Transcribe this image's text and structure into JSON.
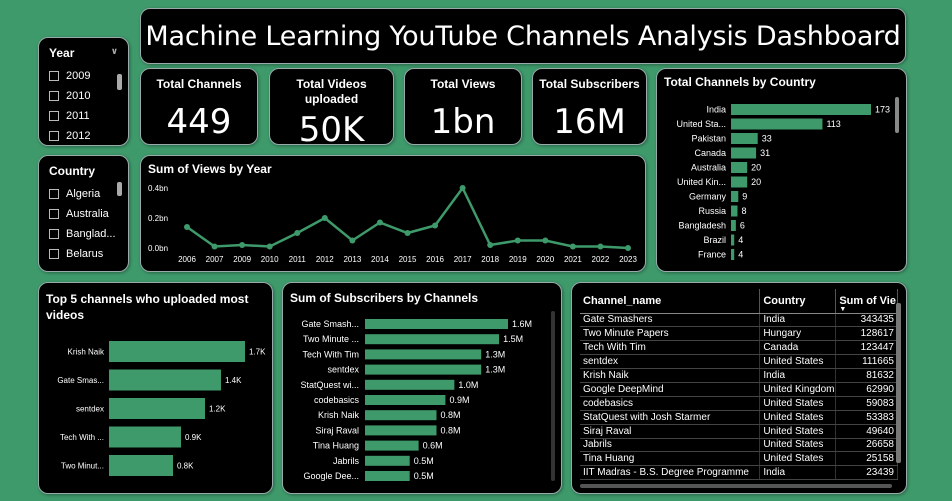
{
  "title": "Machine Learning YouTube Channels Analysis Dashboard",
  "slicers": {
    "year": {
      "label": "Year",
      "items": [
        "2009",
        "2010",
        "2011",
        "2012"
      ]
    },
    "country": {
      "label": "Country",
      "items": [
        "Algeria",
        "Australia",
        "Banglad...",
        "Belarus"
      ]
    }
  },
  "kpis": [
    {
      "label": "Total Channels",
      "value": "449"
    },
    {
      "label": "Total Videos uploaded",
      "value": "50K"
    },
    {
      "label": "Total Views",
      "value": "1bn"
    },
    {
      "label": "Total Subscribers",
      "value": "16M"
    }
  ],
  "chart_data": [
    {
      "id": "channels_by_country",
      "type": "bar",
      "title": "Total Channels by Country",
      "categories": [
        "India",
        "United Sta...",
        "Pakistan",
        "Canada",
        "Australia",
        "United Kin...",
        "Germany",
        "Russia",
        "Bangladesh",
        "Brazil",
        "France"
      ],
      "values": [
        173,
        113,
        33,
        31,
        20,
        20,
        9,
        8,
        6,
        4,
        4
      ],
      "color": "#3e9a6b"
    },
    {
      "id": "views_by_year",
      "type": "line",
      "title": "Sum of Views by Year",
      "x": [
        "2006",
        "2007",
        "2009",
        "2010",
        "2011",
        "2012",
        "2013",
        "2014",
        "2015",
        "2016",
        "2017",
        "2018",
        "2019",
        "2020",
        "2021",
        "2022",
        "2023"
      ],
      "values": [
        0.14,
        0.01,
        0.02,
        0.01,
        0.1,
        0.2,
        0.05,
        0.17,
        0.1,
        0.15,
        0.4,
        0.02,
        0.05,
        0.05,
        0.01,
        0.01,
        0.0
      ],
      "yticks": [
        "0.0bn",
        "0.2bn",
        "0.4bn"
      ],
      "ylim": [
        0,
        0.4
      ],
      "color": "#3e9a6b"
    },
    {
      "id": "top5_videos",
      "type": "bar",
      "title": "Top 5 channels who uploaded most videos",
      "categories": [
        "Krish Naik",
        "Gate Smas...",
        "sentdex",
        "Tech With ...",
        "Two Minut..."
      ],
      "values": [
        1.7,
        1.4,
        1.2,
        0.9,
        0.8
      ],
      "labels": [
        "1.7K",
        "1.4K",
        "1.2K",
        "0.9K",
        "0.8K"
      ],
      "color": "#3e9a6b"
    },
    {
      "id": "subs_by_channel",
      "type": "bar",
      "title": "Sum of Subscribers by Channels",
      "categories": [
        "Gate Smash...",
        "Two Minute ...",
        "Tech With Tim",
        "sentdex",
        "StatQuest wi...",
        "codebasics",
        "Krish Naik",
        "Siraj Raval",
        "Tina Huang",
        "Jabrils",
        "Google Dee..."
      ],
      "values": [
        1.6,
        1.5,
        1.3,
        1.3,
        1.0,
        0.9,
        0.8,
        0.8,
        0.6,
        0.5,
        0.5
      ],
      "labels": [
        "1.6M",
        "1.5M",
        "1.3M",
        "1.3M",
        "1.0M",
        "0.9M",
        "0.8M",
        "0.8M",
        "0.6M",
        "0.5M",
        "0.5M"
      ],
      "color": "#3e9a6b"
    }
  ],
  "table": {
    "columns": [
      "Channel_name",
      "Country",
      "Sum of Vie"
    ],
    "rows": [
      [
        "Gate Smashers",
        "India",
        "343435"
      ],
      [
        "Two Minute Papers",
        "Hungary",
        "128617"
      ],
      [
        "Tech With Tim",
        "Canada",
        "123447"
      ],
      [
        "sentdex",
        "United States",
        "111665"
      ],
      [
        "Krish Naik",
        "India",
        "81632"
      ],
      [
        "Google DeepMind",
        "United Kingdom",
        "62990"
      ],
      [
        "codebasics",
        "United States",
        "59083"
      ],
      [
        "StatQuest with Josh Starmer",
        "United States",
        "53383"
      ],
      [
        "Siraj Raval",
        "United States",
        "49640"
      ],
      [
        "Jabrils",
        "United States",
        "26658"
      ],
      [
        "Tina Huang",
        "United States",
        "25158"
      ],
      [
        "IIT Madras - B.S. Degree Programme",
        "India",
        "23439"
      ]
    ]
  }
}
